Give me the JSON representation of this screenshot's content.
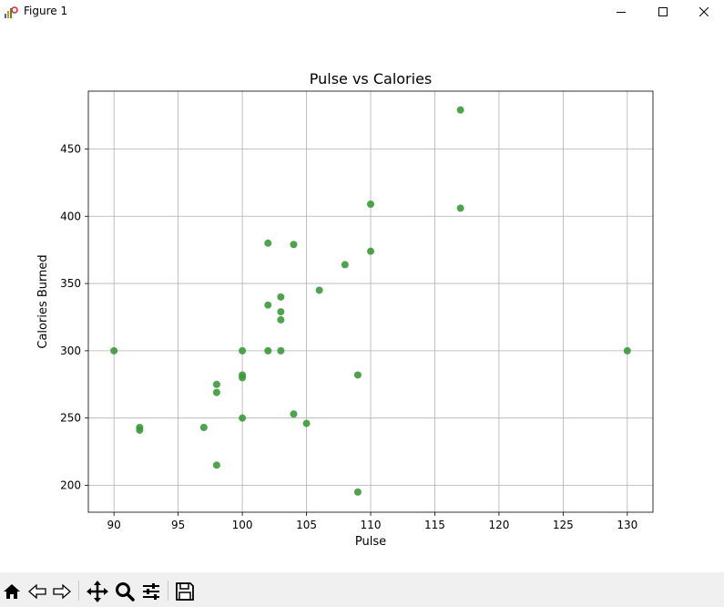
{
  "window": {
    "title": "Figure 1",
    "app_icon": "matplotlib-figure-icon",
    "controls": [
      "minimize-icon",
      "maximize-icon",
      "close-icon"
    ]
  },
  "toolbar": {
    "buttons": [
      "home-icon",
      "back-icon",
      "forward-icon",
      "pan-icon",
      "zoom-icon",
      "configure-subplots-icon",
      "save-icon"
    ]
  },
  "chart_data": {
    "type": "scatter",
    "title": "Pulse vs Calories",
    "xlabel": "Pulse",
    "ylabel": "Calories Burned",
    "xlim": [
      88,
      132
    ],
    "ylim": [
      180,
      493
    ],
    "xticks": [
      90,
      95,
      100,
      105,
      110,
      115,
      120,
      125,
      130
    ],
    "yticks": [
      200,
      250,
      300,
      350,
      400,
      450
    ],
    "grid": true,
    "marker_color": "#3a9a3a",
    "points": [
      {
        "x": 90,
        "y": 300
      },
      {
        "x": 92,
        "y": 243
      },
      {
        "x": 92,
        "y": 241
      },
      {
        "x": 97,
        "y": 243
      },
      {
        "x": 98,
        "y": 275
      },
      {
        "x": 98,
        "y": 269
      },
      {
        "x": 98,
        "y": 215
      },
      {
        "x": 100,
        "y": 300
      },
      {
        "x": 100,
        "y": 282
      },
      {
        "x": 100,
        "y": 280
      },
      {
        "x": 100,
        "y": 250
      },
      {
        "x": 102,
        "y": 380
      },
      {
        "x": 102,
        "y": 334
      },
      {
        "x": 102,
        "y": 300
      },
      {
        "x": 103,
        "y": 340
      },
      {
        "x": 103,
        "y": 329
      },
      {
        "x": 103,
        "y": 323
      },
      {
        "x": 103,
        "y": 300
      },
      {
        "x": 104,
        "y": 379
      },
      {
        "x": 104,
        "y": 253
      },
      {
        "x": 105,
        "y": 246
      },
      {
        "x": 106,
        "y": 345
      },
      {
        "x": 108,
        "y": 364
      },
      {
        "x": 109,
        "y": 282
      },
      {
        "x": 109,
        "y": 195
      },
      {
        "x": 110,
        "y": 409
      },
      {
        "x": 110,
        "y": 374
      },
      {
        "x": 117,
        "y": 479
      },
      {
        "x": 117,
        "y": 406
      },
      {
        "x": 130,
        "y": 300
      }
    ]
  }
}
